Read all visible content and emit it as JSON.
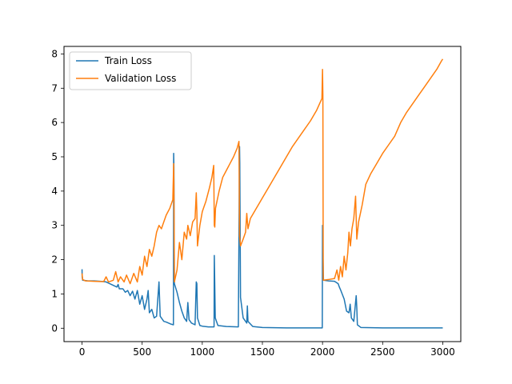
{
  "chart_data": {
    "type": "line",
    "title": "",
    "xlabel": "",
    "ylabel": "",
    "xlim": [
      -150,
      3150
    ],
    "ylim": [
      -0.39,
      8.22
    ],
    "xticks": [
      0,
      500,
      1000,
      1500,
      2000,
      2500,
      3000
    ],
    "yticks": [
      0,
      1,
      2,
      3,
      4,
      5,
      6,
      7,
      8
    ],
    "grid": false,
    "legend": {
      "position": "upper-left"
    },
    "series": [
      {
        "name": "Train Loss",
        "color": "#1f77b4",
        "points": [
          [
            0,
            1.72
          ],
          [
            1,
            1.5
          ],
          [
            5,
            1.4
          ],
          [
            50,
            1.38
          ],
          [
            100,
            1.38
          ],
          [
            150,
            1.37
          ],
          [
            200,
            1.35
          ],
          [
            230,
            1.3
          ],
          [
            260,
            1.25
          ],
          [
            290,
            1.2
          ],
          [
            300,
            1.28
          ],
          [
            310,
            1.15
          ],
          [
            340,
            1.15
          ],
          [
            360,
            1.05
          ],
          [
            380,
            1.1
          ],
          [
            400,
            0.95
          ],
          [
            420,
            1.08
          ],
          [
            440,
            0.85
          ],
          [
            460,
            1.1
          ],
          [
            480,
            0.7
          ],
          [
            500,
            0.95
          ],
          [
            520,
            0.55
          ],
          [
            540,
            0.85
          ],
          [
            550,
            1.1
          ],
          [
            560,
            0.45
          ],
          [
            580,
            0.55
          ],
          [
            600,
            0.3
          ],
          [
            620,
            0.35
          ],
          [
            640,
            1.35
          ],
          [
            650,
            0.35
          ],
          [
            680,
            0.2
          ],
          [
            700,
            0.18
          ],
          [
            740,
            0.12
          ],
          [
            760,
            0.1
          ],
          [
            762,
            5.1
          ],
          [
            764,
            4.7
          ],
          [
            768,
            1.3
          ],
          [
            790,
            1.05
          ],
          [
            810,
            0.75
          ],
          [
            830,
            0.5
          ],
          [
            850,
            0.3
          ],
          [
            870,
            0.2
          ],
          [
            880,
            0.75
          ],
          [
            890,
            0.25
          ],
          [
            910,
            0.15
          ],
          [
            940,
            0.1
          ],
          [
            950,
            1.35
          ],
          [
            955,
            1.3
          ],
          [
            960,
            0.3
          ],
          [
            980,
            0.08
          ],
          [
            1000,
            0.06
          ],
          [
            1050,
            0.04
          ],
          [
            1098,
            0.04
          ],
          [
            1100,
            2.12
          ],
          [
            1102,
            1.7
          ],
          [
            1108,
            0.3
          ],
          [
            1130,
            0.08
          ],
          [
            1200,
            0.05
          ],
          [
            1300,
            0.04
          ],
          [
            1310,
            5.3
          ],
          [
            1312,
            4.8
          ],
          [
            1318,
            0.9
          ],
          [
            1340,
            0.3
          ],
          [
            1370,
            0.15
          ],
          [
            1375,
            0.65
          ],
          [
            1380,
            0.2
          ],
          [
            1420,
            0.05
          ],
          [
            1500,
            0.02
          ],
          [
            1700,
            0.01
          ],
          [
            1900,
            0.01
          ],
          [
            1998,
            0.01
          ],
          [
            2000,
            3.0
          ],
          [
            2003,
            2.2
          ],
          [
            2008,
            1.4
          ],
          [
            2050,
            1.38
          ],
          [
            2100,
            1.37
          ],
          [
            2130,
            1.3
          ],
          [
            2140,
            1.2
          ],
          [
            2150,
            1.12
          ],
          [
            2180,
            0.85
          ],
          [
            2200,
            0.5
          ],
          [
            2220,
            0.45
          ],
          [
            2230,
            0.7
          ],
          [
            2240,
            0.3
          ],
          [
            2260,
            0.2
          ],
          [
            2280,
            0.95
          ],
          [
            2285,
            0.6
          ],
          [
            2290,
            0.1
          ],
          [
            2320,
            0.02
          ],
          [
            2500,
            0.01
          ],
          [
            2800,
            0.01
          ],
          [
            3000,
            0.01
          ]
        ]
      },
      {
        "name": "Validation Loss",
        "color": "#ff7f0e",
        "points": [
          [
            0,
            1.6
          ],
          [
            5,
            1.42
          ],
          [
            30,
            1.38
          ],
          [
            100,
            1.37
          ],
          [
            180,
            1.36
          ],
          [
            200,
            1.5
          ],
          [
            220,
            1.35
          ],
          [
            260,
            1.4
          ],
          [
            280,
            1.65
          ],
          [
            300,
            1.35
          ],
          [
            320,
            1.5
          ],
          [
            350,
            1.35
          ],
          [
            370,
            1.55
          ],
          [
            400,
            1.3
          ],
          [
            430,
            1.6
          ],
          [
            460,
            1.35
          ],
          [
            480,
            1.8
          ],
          [
            500,
            1.55
          ],
          [
            520,
            2.1
          ],
          [
            540,
            1.8
          ],
          [
            560,
            2.3
          ],
          [
            580,
            2.1
          ],
          [
            600,
            2.4
          ],
          [
            620,
            2.8
          ],
          [
            640,
            3.0
          ],
          [
            660,
            2.9
          ],
          [
            680,
            3.1
          ],
          [
            700,
            3.3
          ],
          [
            730,
            3.5
          ],
          [
            755,
            3.75
          ],
          [
            762,
            4.8
          ],
          [
            764,
            4.2
          ],
          [
            768,
            1.35
          ],
          [
            790,
            1.7
          ],
          [
            810,
            2.5
          ],
          [
            830,
            2.0
          ],
          [
            850,
            2.8
          ],
          [
            870,
            2.6
          ],
          [
            880,
            3.0
          ],
          [
            900,
            2.7
          ],
          [
            920,
            3.1
          ],
          [
            940,
            3.2
          ],
          [
            950,
            3.95
          ],
          [
            955,
            3.4
          ],
          [
            960,
            2.4
          ],
          [
            980,
            3.0
          ],
          [
            1000,
            3.4
          ],
          [
            1030,
            3.7
          ],
          [
            1060,
            4.1
          ],
          [
            1080,
            4.4
          ],
          [
            1095,
            4.75
          ],
          [
            1100,
            3.0
          ],
          [
            1104,
            2.95
          ],
          [
            1110,
            3.5
          ],
          [
            1140,
            4.0
          ],
          [
            1170,
            4.4
          ],
          [
            1200,
            4.6
          ],
          [
            1230,
            4.8
          ],
          [
            1260,
            5.0
          ],
          [
            1290,
            5.25
          ],
          [
            1305,
            5.45
          ],
          [
            1310,
            2.7
          ],
          [
            1318,
            2.4
          ],
          [
            1340,
            2.6
          ],
          [
            1360,
            2.8
          ],
          [
            1370,
            3.35
          ],
          [
            1380,
            2.9
          ],
          [
            1400,
            3.2
          ],
          [
            1450,
            3.5
          ],
          [
            1500,
            3.8
          ],
          [
            1550,
            4.1
          ],
          [
            1600,
            4.4
          ],
          [
            1650,
            4.7
          ],
          [
            1700,
            5.0
          ],
          [
            1750,
            5.3
          ],
          [
            1800,
            5.55
          ],
          [
            1850,
            5.8
          ],
          [
            1900,
            6.05
          ],
          [
            1950,
            6.35
          ],
          [
            1995,
            6.7
          ],
          [
            2000,
            7.55
          ],
          [
            2003,
            6.8
          ],
          [
            2006,
            1.4
          ],
          [
            2050,
            1.42
          ],
          [
            2100,
            1.45
          ],
          [
            2120,
            1.7
          ],
          [
            2135,
            1.4
          ],
          [
            2150,
            1.8
          ],
          [
            2165,
            1.5
          ],
          [
            2180,
            2.1
          ],
          [
            2195,
            1.7
          ],
          [
            2210,
            2.2
          ],
          [
            2220,
            2.8
          ],
          [
            2232,
            2.4
          ],
          [
            2245,
            2.9
          ],
          [
            2260,
            3.2
          ],
          [
            2275,
            3.85
          ],
          [
            2285,
            2.6
          ],
          [
            2300,
            3.1
          ],
          [
            2330,
            3.6
          ],
          [
            2360,
            4.2
          ],
          [
            2400,
            4.5
          ],
          [
            2450,
            4.8
          ],
          [
            2500,
            5.1
          ],
          [
            2550,
            5.35
          ],
          [
            2600,
            5.6
          ],
          [
            2650,
            6.0
          ],
          [
            2700,
            6.3
          ],
          [
            2750,
            6.55
          ],
          [
            2800,
            6.8
          ],
          [
            2850,
            7.05
          ],
          [
            2900,
            7.3
          ],
          [
            2950,
            7.55
          ],
          [
            2990,
            7.8
          ],
          [
            3000,
            7.85
          ]
        ]
      }
    ]
  }
}
